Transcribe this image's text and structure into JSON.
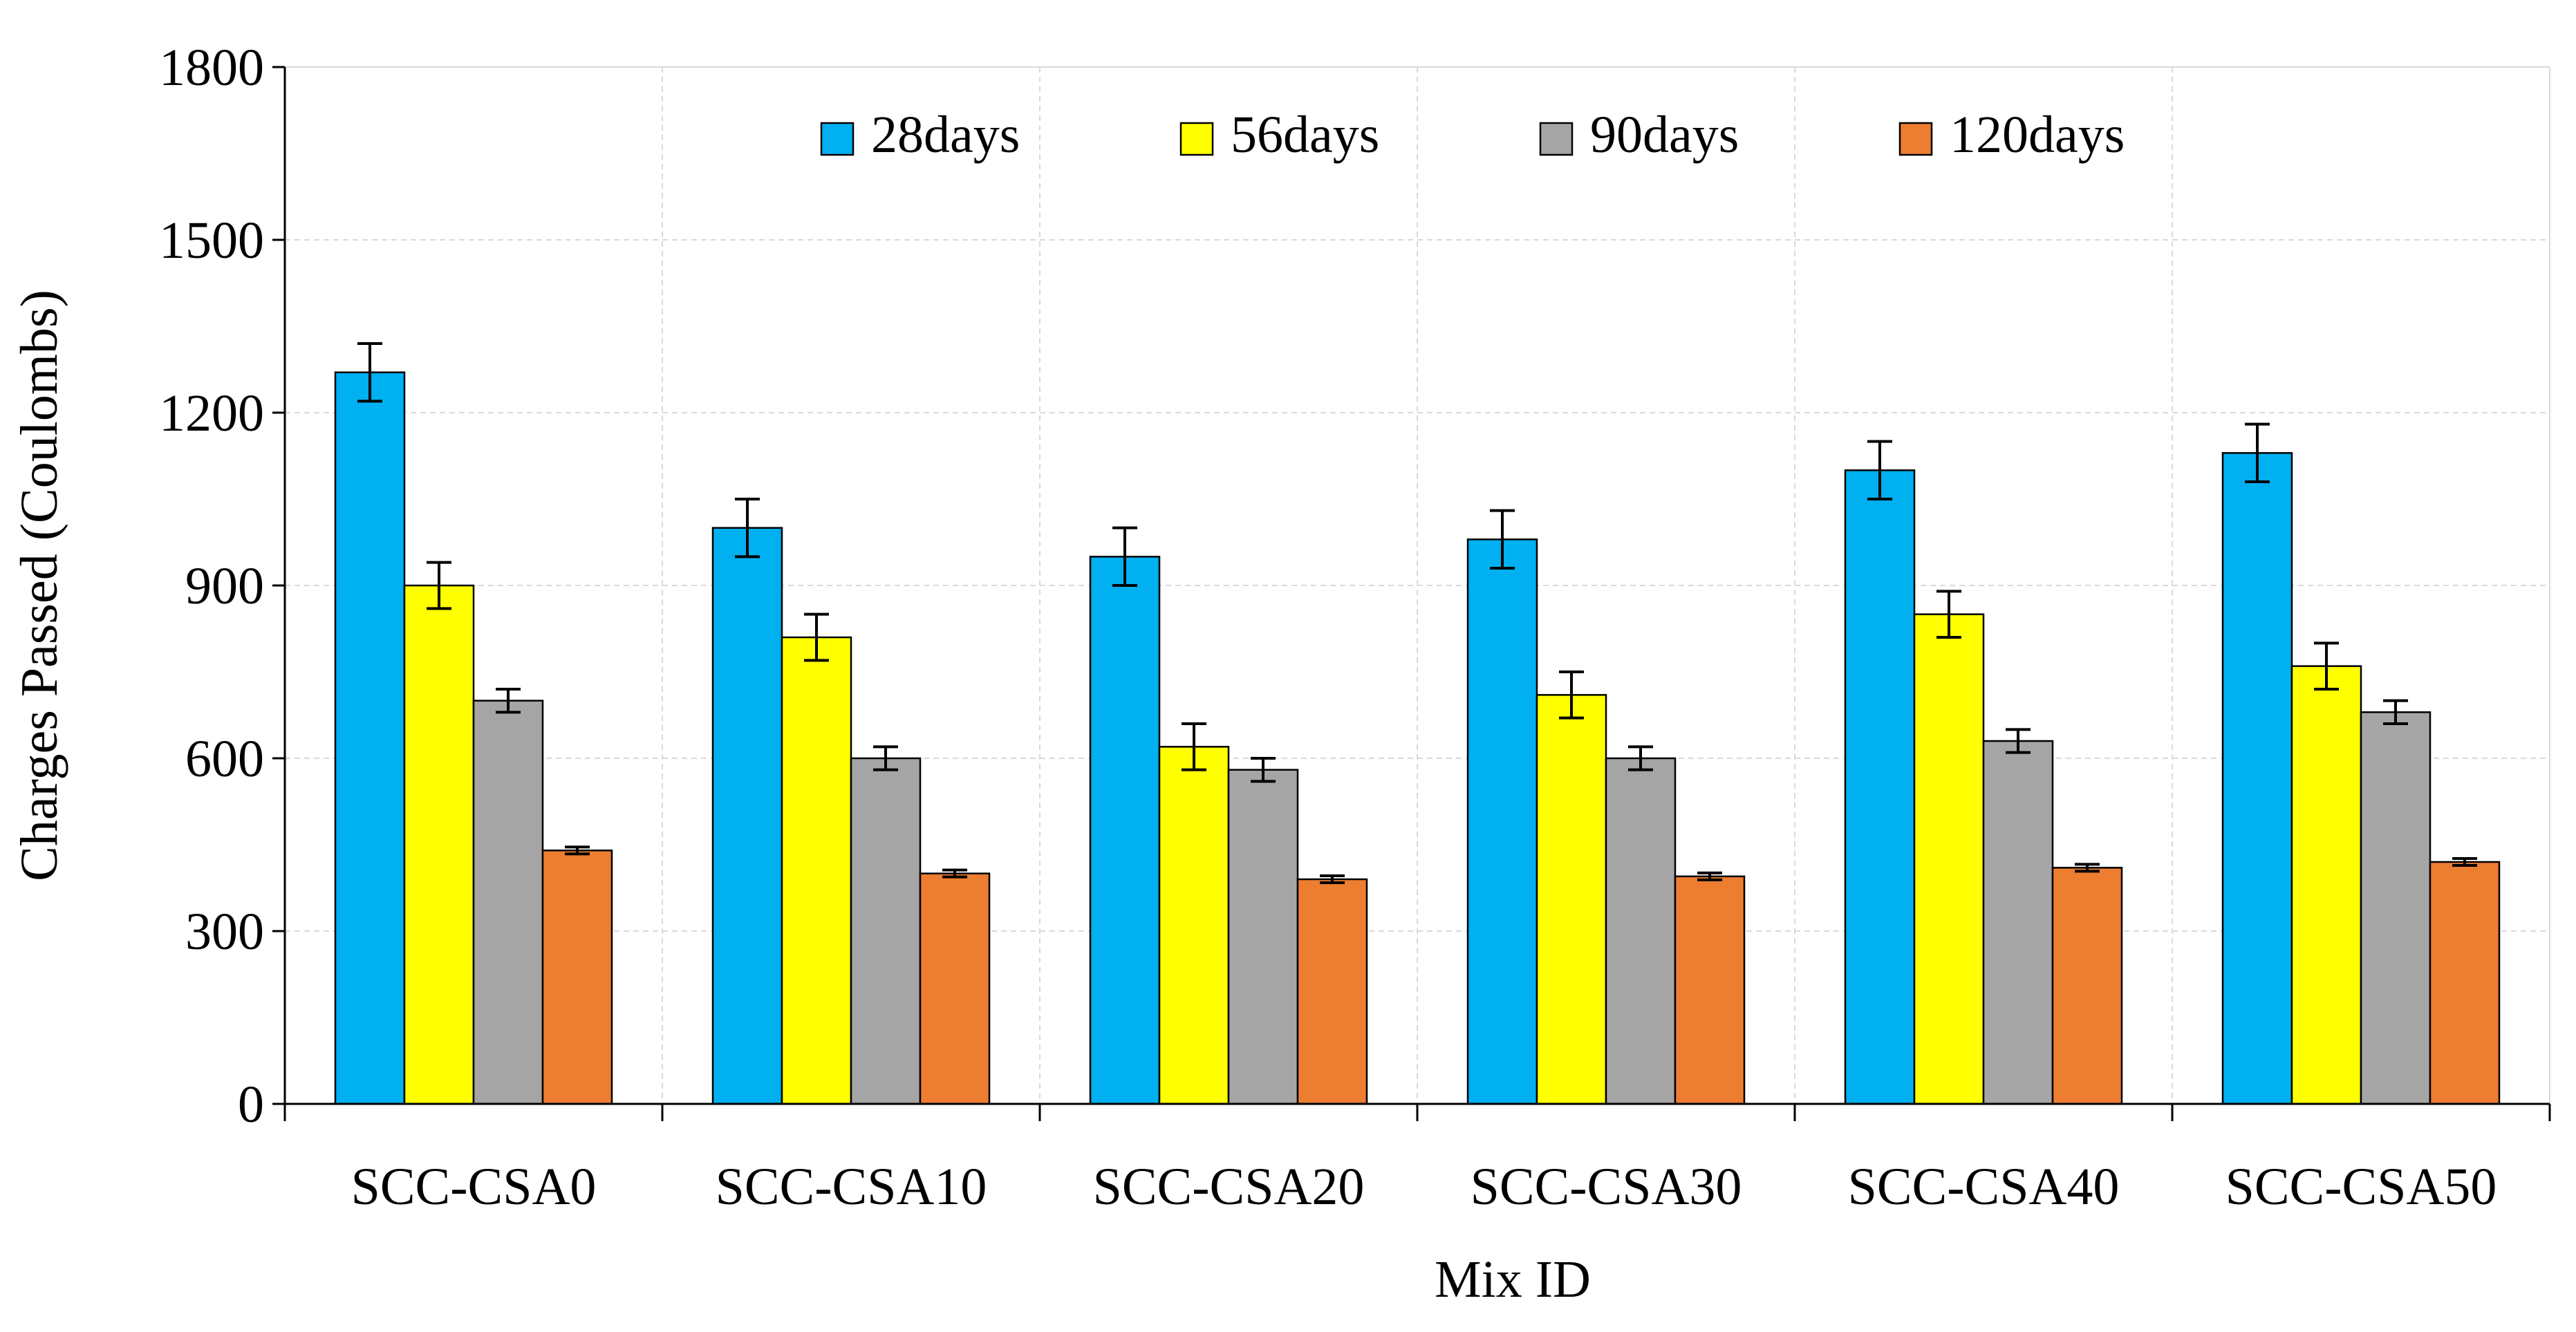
{
  "chart_data": {
    "type": "bar",
    "title": "",
    "xlabel": "Mix ID",
    "ylabel": "Charges Passed  (Coulombs)",
    "ylim": [
      0,
      1800
    ],
    "yticks": [
      0,
      300,
      600,
      900,
      1200,
      1500,
      1800
    ],
    "grid": true,
    "legend_position": "top",
    "categories": [
      "SCC-CSA0",
      "SCC-CSA10",
      "SCC-CSA20",
      "SCC-CSA30",
      "SCC-CSA40",
      "SCC-CSA50"
    ],
    "series": [
      {
        "name": "28days",
        "color": "#00B0F0",
        "values": [
          1270,
          1000,
          950,
          980,
          1100,
          1130
        ],
        "errors": [
          50,
          50,
          50,
          50,
          50,
          50
        ]
      },
      {
        "name": "56days",
        "color": "#FFFF00",
        "values": [
          900,
          810,
          620,
          710,
          850,
          760
        ],
        "errors": [
          40,
          40,
          40,
          40,
          40,
          40
        ]
      },
      {
        "name": "90days",
        "color": "#A5A5A5",
        "values": [
          700,
          600,
          580,
          600,
          630,
          680
        ],
        "errors": [
          20,
          20,
          20,
          20,
          20,
          20
        ]
      },
      {
        "name": "120days",
        "color": "#ED7D31",
        "values": [
          440,
          400,
          390,
          395,
          410,
          420
        ],
        "errors": [
          6,
          6,
          6,
          6,
          6,
          6
        ]
      }
    ]
  }
}
